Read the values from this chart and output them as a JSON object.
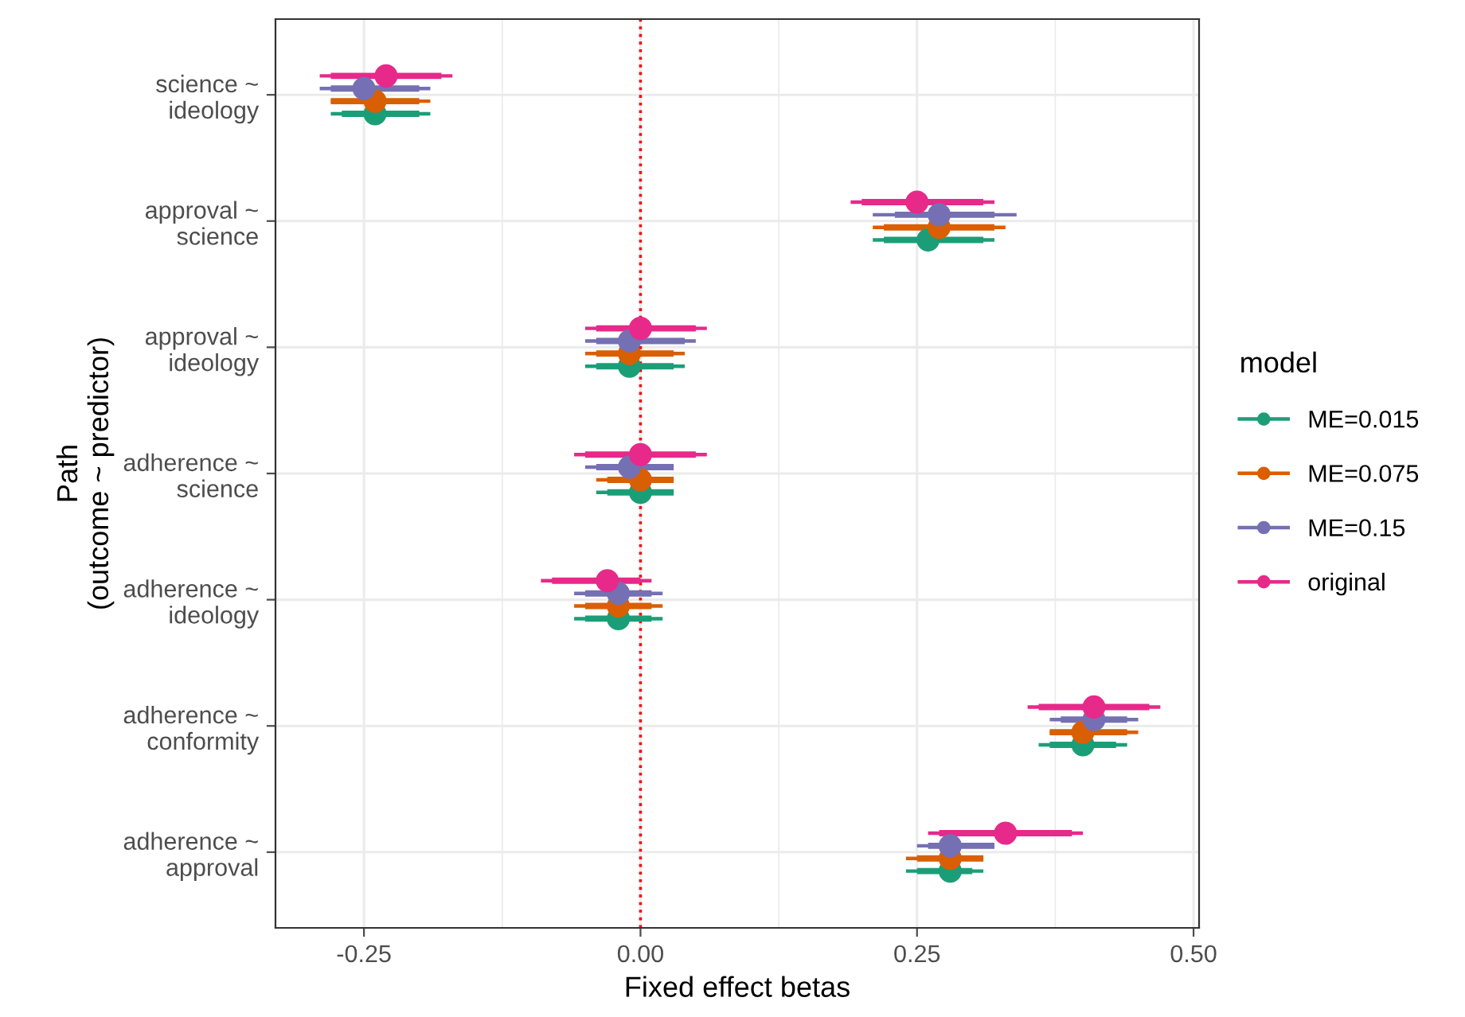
{
  "chart_data": {
    "type": "scatter",
    "orientation": "horizontal",
    "xlabel": "Fixed effect betas",
    "ylabel": "Path\n(outcome ~ predictor)",
    "legend_title": "model",
    "legend": "right",
    "grid": true,
    "marker": "circle",
    "categories": [
      "science ~\nideology",
      "approval ~\nscience",
      "approval ~\nideology",
      "adherence ~\nscience",
      "adherence ~\nideology",
      "adherence ~\nconformity",
      "adherence ~\napproval"
    ],
    "xlim": [
      -0.33,
      0.505
    ],
    "xticks": [
      -0.25,
      {
        "value": 0,
        "label": "0.00"
      },
      0.25,
      {
        "value": 0.5,
        "label": "0.50"
      }
    ],
    "ref_lines": [
      {
        "axis": "x",
        "value": 0,
        "color": "#ff0000",
        "line_style": "dotted"
      }
    ],
    "series": [
      {
        "name": "ME=0.015",
        "color": "#1b9e77",
        "values": [
          -0.24,
          0.26,
          -0.01,
          0.0,
          -0.02,
          0.4,
          0.28
        ],
        "errors": [
          [
            -0.28,
            -0.19
          ],
          [
            0.21,
            0.32
          ],
          [
            -0.05,
            0.04
          ],
          [
            -0.04,
            0.03
          ],
          [
            -0.06,
            0.02
          ],
          [
            0.36,
            0.44
          ],
          [
            0.24,
            0.31
          ]
        ]
      },
      {
        "type": "bar",
        "color": "#1b9e77",
        "base": [
          -0.27,
          0.22,
          -0.04,
          -0.03,
          -0.05,
          0.37,
          0.25
        ],
        "values": [
          0.07,
          0.09,
          0.07,
          0.06,
          0.06,
          0.06,
          0.05
        ]
      },
      {
        "name": "ME=0.075",
        "color": "#d95f02",
        "values": [
          -0.24,
          0.27,
          -0.01,
          0.0,
          -0.02,
          0.4,
          0.28
        ],
        "errors": [
          [
            -0.28,
            -0.19
          ],
          [
            0.21,
            0.33
          ],
          [
            -0.05,
            0.04
          ],
          [
            -0.04,
            0.03
          ],
          [
            -0.06,
            0.02
          ],
          [
            0.37,
            0.45
          ],
          [
            0.24,
            0.31
          ]
        ]
      },
      {
        "type": "bar",
        "color": "#d95f02",
        "base": [
          -0.28,
          0.22,
          -0.04,
          -0.03,
          -0.05,
          0.37,
          0.25
        ],
        "values": [
          0.08,
          0.1,
          0.07,
          0.06,
          0.06,
          0.07,
          0.06
        ]
      },
      {
        "name": "ME=0.15",
        "color": "#7570b3",
        "values": [
          -0.25,
          0.27,
          -0.01,
          -0.01,
          -0.02,
          0.41,
          0.28
        ],
        "errors": [
          [
            -0.29,
            -0.19
          ],
          [
            0.21,
            0.34
          ],
          [
            -0.05,
            0.05
          ],
          [
            -0.05,
            0.03
          ],
          [
            -0.06,
            0.02
          ],
          [
            0.37,
            0.45
          ],
          [
            0.25,
            0.32
          ]
        ]
      },
      {
        "type": "bar",
        "color": "#7570b3",
        "base": [
          -0.28,
          0.23,
          -0.04,
          -0.04,
          -0.05,
          0.38,
          0.26
        ],
        "values": [
          0.08,
          0.09,
          0.08,
          0.07,
          0.06,
          0.06,
          0.06
        ]
      },
      {
        "name": "original",
        "color": "#e7298a",
        "values": [
          -0.23,
          0.25,
          0.0,
          0.0,
          -0.03,
          0.41,
          0.33
        ],
        "errors": [
          [
            -0.29,
            -0.17
          ],
          [
            0.19,
            0.32
          ],
          [
            -0.05,
            0.06
          ],
          [
            -0.06,
            0.06
          ],
          [
            -0.09,
            0.01
          ],
          [
            0.35,
            0.47
          ],
          [
            0.26,
            0.4
          ]
        ]
      },
      {
        "type": "bar",
        "color": "#e7298a",
        "base": [
          -0.28,
          0.2,
          -0.04,
          -0.05,
          -0.08,
          0.36,
          0.27
        ],
        "values": [
          0.1,
          0.11,
          0.09,
          0.1,
          0.08,
          0.1,
          0.12
        ]
      }
    ]
  }
}
